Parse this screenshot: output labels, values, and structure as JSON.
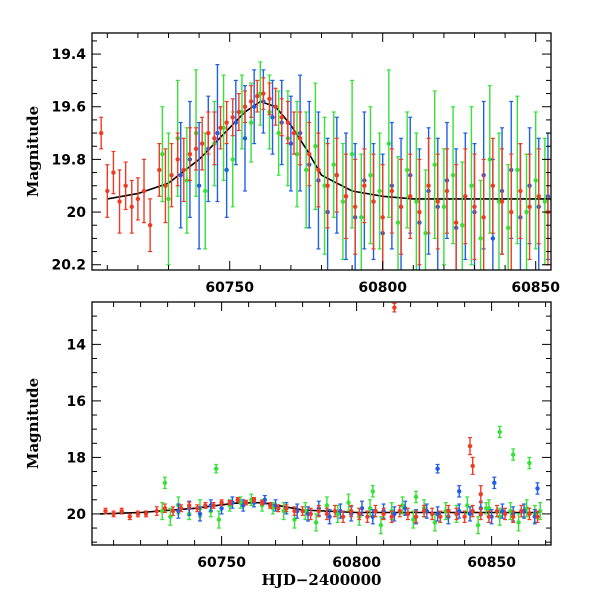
{
  "chart_data": [
    {
      "type": "scatter",
      "title": "",
      "xlabel": "",
      "ylabel": "Magnitude",
      "xlim": [
        60705,
        60855
      ],
      "ylim": [
        20.22,
        19.32
      ],
      "y_inverted": true,
      "x_ticks": [
        60750,
        60800,
        60850
      ],
      "y_ticks": [
        19.4,
        19.6,
        19.8,
        20,
        20.2
      ],
      "x_tick_labels": [
        "60750",
        "60800",
        "60850"
      ],
      "y_tick_labels": [
        "19.4",
        "19.6",
        "19.8",
        "20",
        "20.2"
      ],
      "grid": false,
      "legend": "none",
      "model_curve": {
        "color": "#000000",
        "x": [
          60710,
          60720,
          60730,
          60740,
          60750,
          60755,
          60760,
          60765,
          60770,
          60775,
          60780,
          60790,
          60800,
          60810,
          60820,
          60830,
          60840,
          60855
        ],
        "y": [
          19.95,
          19.93,
          19.89,
          19.8,
          19.68,
          19.62,
          19.58,
          19.6,
          19.67,
          19.76,
          19.86,
          19.92,
          19.94,
          19.95,
          19.95,
          19.95,
          19.95,
          19.95
        ]
      },
      "series": [
        {
          "color": "#36e236",
          "x": [
            60728,
            60730,
            60733,
            60736,
            60739,
            60742,
            60745,
            60748,
            60751,
            60754,
            60757,
            60760,
            60763,
            60766,
            60769,
            60772,
            60775,
            60778,
            60781,
            60784,
            60787,
            60790,
            60793,
            60796,
            60799,
            60802,
            60805,
            60808,
            60811,
            60814,
            60817,
            60820,
            60823,
            60826,
            60829,
            60832,
            60835,
            60838,
            60841,
            60844,
            60847,
            60850,
            60853
          ],
          "y": [
            19.78,
            19.95,
            19.72,
            19.88,
            19.7,
            19.92,
            19.74,
            19.68,
            19.8,
            19.62,
            19.66,
            19.55,
            19.62,
            19.7,
            19.72,
            19.78,
            19.84,
            19.75,
            19.9,
            19.82,
            19.96,
            19.78,
            20.02,
            19.86,
            19.92,
            19.74,
            20.04,
            19.84,
            19.96,
            20.08,
            19.82,
            19.98,
            19.86,
            20.05,
            19.9,
            20.1,
            19.8,
            19.96,
            20.06,
            19.84,
            20.0,
            19.88,
            19.96
          ],
          "err": [
            0.18,
            0.25,
            0.22,
            0.2,
            0.24,
            0.22,
            0.16,
            0.2,
            0.18,
            0.14,
            0.15,
            0.12,
            0.14,
            0.16,
            0.18,
            0.2,
            0.22,
            0.24,
            0.26,
            0.2,
            0.22,
            0.28,
            0.24,
            0.26,
            0.22,
            0.28,
            0.25,
            0.22,
            0.26,
            0.24,
            0.28,
            0.22,
            0.26,
            0.24,
            0.3,
            0.22,
            0.28,
            0.26,
            0.24,
            0.28,
            0.22,
            0.26,
            0.24
          ]
        },
        {
          "color": "#1f5fe6",
          "x": [
            60734,
            60737,
            60740,
            60743,
            60746,
            60749,
            60752,
            60755,
            60758,
            60761,
            60764,
            60767,
            60770,
            60773,
            60776,
            60779,
            60782,
            60785,
            60788,
            60791,
            60794,
            60797,
            60800,
            60803,
            60806,
            60809,
            60812,
            60815,
            60818,
            60821,
            60824,
            60827,
            60830,
            60833,
            60836,
            60839,
            60842,
            60845,
            60848,
            60851,
            60854
          ],
          "y": [
            19.86,
            19.8,
            19.9,
            19.76,
            19.7,
            19.84,
            19.66,
            19.72,
            19.6,
            19.58,
            19.64,
            19.66,
            19.74,
            19.7,
            19.82,
            19.88,
            20.0,
            19.86,
            19.94,
            20.02,
            19.88,
            19.96,
            20.08,
            19.9,
            19.98,
            19.86,
            20.04,
            19.92,
            19.98,
            19.88,
            20.06,
            19.94,
            20.0,
            19.86,
            20.1,
            19.92,
            19.84,
            20.02,
            19.9,
            19.98,
            19.94
          ],
          "err": [
            0.2,
            0.22,
            0.24,
            0.2,
            0.26,
            0.18,
            0.16,
            0.2,
            0.14,
            0.12,
            0.14,
            0.16,
            0.18,
            0.22,
            0.24,
            0.26,
            0.28,
            0.22,
            0.24,
            0.28,
            0.26,
            0.22,
            0.3,
            0.24,
            0.26,
            0.22,
            0.28,
            0.24,
            0.26,
            0.22,
            0.3,
            0.24,
            0.26,
            0.28,
            0.3,
            0.24,
            0.26,
            0.28,
            0.22,
            0.26,
            0.24
          ]
        },
        {
          "color": "#ef3b24",
          "x": [
            60708,
            60710,
            60712,
            60714,
            60716,
            60718,
            60720,
            60722,
            60724,
            60727,
            60729,
            60731,
            60733,
            60735,
            60737,
            60739,
            60741,
            60743,
            60745,
            60747,
            60749,
            60751,
            60753,
            60755,
            60757,
            60759,
            60761,
            60763,
            60765,
            60767,
            60769,
            60771,
            60773,
            60776,
            60779,
            60782,
            60785,
            60788,
            60791,
            60794,
            60797,
            60800,
            60803,
            60806,
            60809,
            60812,
            60815,
            60818,
            60821,
            60824,
            60827,
            60830,
            60833,
            60836,
            60839,
            60842,
            60845,
            60848,
            60851,
            60854
          ],
          "y": [
            19.7,
            19.92,
            19.85,
            19.96,
            19.9,
            19.98,
            19.95,
            19.92,
            20.05,
            19.84,
            19.9,
            19.86,
            19.8,
            19.84,
            19.78,
            19.76,
            19.74,
            19.7,
            19.72,
            19.68,
            19.66,
            19.64,
            19.62,
            19.6,
            19.58,
            19.56,
            19.55,
            19.57,
            19.6,
            19.64,
            19.66,
            19.7,
            19.72,
            19.78,
            19.84,
            19.9,
            19.86,
            19.94,
            19.98,
            19.9,
            19.96,
            20.02,
            19.92,
            19.98,
            19.94,
            20.0,
            19.9,
            19.96,
            19.92,
            20.04,
            19.94,
            19.98,
            20.02,
            19.9,
            19.96,
            20.0,
            19.92,
            19.98,
            19.94,
            20.0
          ],
          "err": [
            0.06,
            0.1,
            0.08,
            0.12,
            0.09,
            0.1,
            0.08,
            0.12,
            0.1,
            0.1,
            0.14,
            0.12,
            0.1,
            0.12,
            0.1,
            0.08,
            0.1,
            0.08,
            0.1,
            0.08,
            0.08,
            0.07,
            0.07,
            0.06,
            0.06,
            0.06,
            0.06,
            0.06,
            0.07,
            0.07,
            0.08,
            0.08,
            0.1,
            0.12,
            0.14,
            0.16,
            0.14,
            0.16,
            0.18,
            0.14,
            0.18,
            0.2,
            0.16,
            0.18,
            0.16,
            0.2,
            0.18,
            0.18,
            0.16,
            0.22,
            0.18,
            0.2,
            0.22,
            0.18,
            0.2,
            0.22,
            0.18,
            0.2,
            0.18,
            0.2
          ]
        }
      ]
    },
    {
      "type": "scatter",
      "title": "",
      "xlabel": "HJD−2400000",
      "ylabel": "Magnitude",
      "xlim": [
        60702,
        60872
      ],
      "ylim": [
        21.1,
        12.5
      ],
      "y_inverted": true,
      "x_ticks": [
        60750,
        60800,
        60850
      ],
      "y_ticks": [
        14,
        16,
        18,
        20
      ],
      "x_tick_labels": [
        "60750",
        "60800",
        "60850"
      ],
      "y_tick_labels": [
        "14",
        "16",
        "18",
        "20"
      ],
      "grid": false,
      "legend": "none",
      "model_curve": {
        "color": "#000000",
        "x": [
          60705,
          60720,
          60740,
          60755,
          60765,
          60780,
          60800,
          60820,
          60840,
          60868
        ],
        "y": [
          20.0,
          19.95,
          19.8,
          19.62,
          19.6,
          19.86,
          19.95,
          19.95,
          19.95,
          19.95
        ]
      },
      "series": [
        {
          "color": "#36e236",
          "x": [
            60728,
            60731,
            60734,
            60738,
            60742,
            60746,
            60749,
            60753,
            60757,
            60761,
            60765,
            60769,
            60773,
            60777,
            60781,
            60785,
            60789,
            60793,
            60797,
            60801,
            60805,
            60809,
            60813,
            60817,
            60821,
            60825,
            60829,
            60833,
            60837,
            60841,
            60845,
            60849,
            60853,
            60857,
            60860,
            60863,
            60866,
            60868,
            60729,
            60748,
            60806,
            60822,
            60848,
            60853,
            60858,
            60864
          ],
          "y": [
            19.9,
            20.1,
            19.7,
            20.0,
            19.8,
            19.9,
            20.2,
            19.7,
            19.6,
            19.5,
            19.7,
            19.8,
            19.9,
            20.2,
            19.9,
            20.3,
            19.7,
            20.0,
            19.6,
            20.1,
            19.8,
            20.4,
            19.9,
            19.7,
            20.2,
            19.8,
            20.3,
            19.9,
            20.0,
            19.7,
            20.4,
            19.8,
            20.1,
            19.9,
            20.3,
            19.8,
            20.0,
            19.9,
            18.9,
            18.4,
            19.2,
            19.4,
            19.8,
            17.1,
            17.9,
            18.2
          ],
          "err": [
            0.3,
            0.3,
            0.3,
            0.2,
            0.3,
            0.2,
            0.3,
            0.2,
            0.2,
            0.2,
            0.2,
            0.2,
            0.3,
            0.3,
            0.3,
            0.3,
            0.3,
            0.3,
            0.3,
            0.3,
            0.3,
            0.3,
            0.3,
            0.3,
            0.3,
            0.3,
            0.3,
            0.3,
            0.3,
            0.3,
            0.3,
            0.3,
            0.3,
            0.3,
            0.3,
            0.3,
            0.3,
            0.3,
            0.2,
            0.15,
            0.2,
            0.2,
            0.2,
            0.2,
            0.2,
            0.2
          ]
        },
        {
          "color": "#1f5fe6",
          "x": [
            60734,
            60738,
            60742,
            60746,
            60750,
            60754,
            60758,
            60762,
            60766,
            60770,
            60774,
            60778,
            60782,
            60786,
            60790,
            60794,
            60798,
            60802,
            60806,
            60810,
            60814,
            60818,
            60822,
            60826,
            60830,
            60834,
            60838,
            60842,
            60846,
            60850,
            60854,
            60858,
            60862,
            60866,
            60830,
            60838,
            60851,
            60867
          ],
          "y": [
            19.9,
            19.8,
            20.0,
            19.7,
            19.8,
            19.6,
            19.7,
            19.6,
            19.5,
            19.7,
            19.8,
            19.9,
            20.0,
            19.8,
            20.1,
            19.9,
            20.0,
            19.8,
            20.1,
            19.9,
            20.0,
            19.8,
            20.1,
            19.9,
            20.0,
            20.1,
            19.9,
            20.0,
            19.8,
            20.1,
            19.9,
            20.0,
            19.9,
            20.1,
            18.4,
            19.2,
            18.9,
            19.1
          ],
          "err": [
            0.25,
            0.25,
            0.25,
            0.2,
            0.2,
            0.2,
            0.2,
            0.15,
            0.15,
            0.2,
            0.2,
            0.25,
            0.25,
            0.25,
            0.25,
            0.25,
            0.25,
            0.25,
            0.25,
            0.25,
            0.25,
            0.25,
            0.25,
            0.25,
            0.25,
            0.25,
            0.25,
            0.25,
            0.25,
            0.25,
            0.25,
            0.25,
            0.25,
            0.25,
            0.15,
            0.2,
            0.2,
            0.2
          ]
        },
        {
          "color": "#ef3b24",
          "x": [
            60707,
            60710,
            60713,
            60716,
            60719,
            60722,
            60726,
            60729,
            60732,
            60735,
            60738,
            60741,
            60744,
            60747,
            60750,
            60753,
            60756,
            60759,
            60762,
            60765,
            60768,
            60771,
            60774,
            60777,
            60780,
            60783,
            60786,
            60789,
            60792,
            60795,
            60798,
            60801,
            60804,
            60807,
            60810,
            60813,
            60816,
            60819,
            60822,
            60825,
            60828,
            60831,
            60834,
            60837,
            60840,
            60843,
            60846,
            60849,
            60852,
            60855,
            60858,
            60861,
            60864,
            60867,
            60814,
            60842,
            60846,
            60843
          ],
          "y": [
            19.9,
            20.0,
            19.9,
            20.1,
            20.0,
            20.0,
            19.9,
            19.8,
            19.9,
            19.8,
            19.7,
            19.8,
            19.7,
            19.7,
            19.6,
            19.6,
            19.5,
            19.6,
            19.5,
            19.6,
            19.7,
            19.8,
            19.8,
            19.9,
            19.9,
            20.0,
            19.9,
            20.0,
            19.9,
            20.1,
            19.9,
            20.0,
            20.1,
            19.9,
            20.0,
            20.1,
            19.9,
            20.0,
            20.1,
            19.9,
            20.0,
            20.1,
            19.9,
            20.0,
            20.1,
            19.9,
            20.0,
            20.1,
            19.9,
            20.0,
            20.1,
            19.9,
            20.0,
            20.1,
            12.7,
            17.6,
            19.3,
            18.3
          ],
          "err": [
            0.1,
            0.1,
            0.1,
            0.1,
            0.1,
            0.1,
            0.15,
            0.15,
            0.15,
            0.12,
            0.12,
            0.12,
            0.1,
            0.1,
            0.1,
            0.08,
            0.08,
            0.08,
            0.08,
            0.08,
            0.1,
            0.12,
            0.12,
            0.15,
            0.15,
            0.2,
            0.2,
            0.2,
            0.2,
            0.2,
            0.2,
            0.2,
            0.2,
            0.2,
            0.2,
            0.2,
            0.2,
            0.2,
            0.2,
            0.2,
            0.2,
            0.2,
            0.2,
            0.2,
            0.2,
            0.2,
            0.2,
            0.2,
            0.2,
            0.2,
            0.2,
            0.2,
            0.2,
            0.2,
            0.15,
            0.3,
            0.3,
            0.3
          ]
        }
      ]
    }
  ]
}
